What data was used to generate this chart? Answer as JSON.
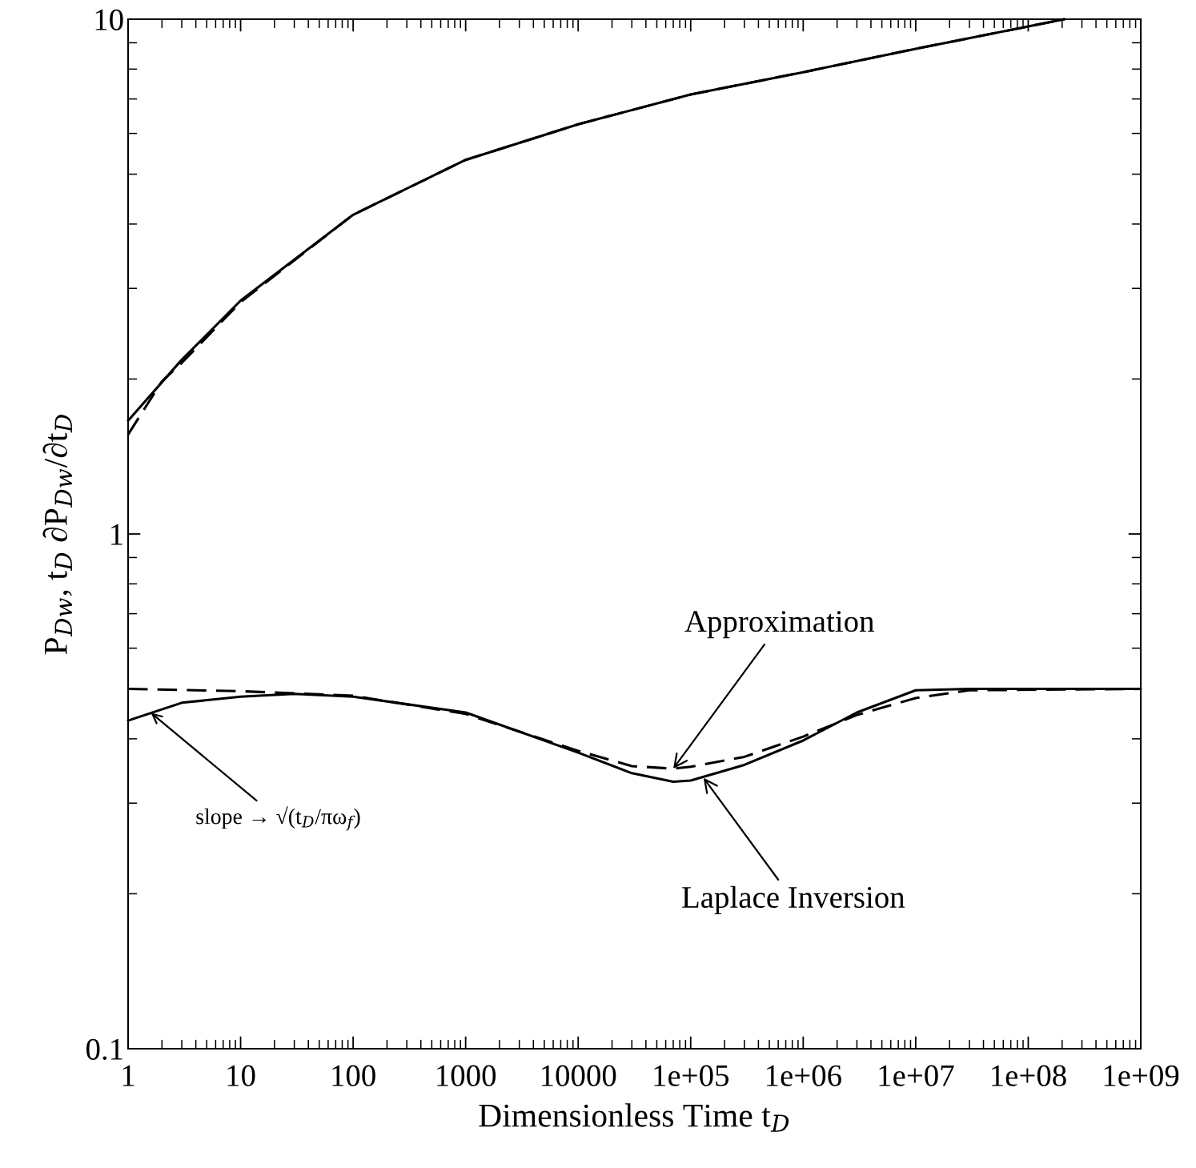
{
  "chart_data": {
    "type": "line",
    "xlabel": "Dimensionless Time t$_{D}$",
    "ylabel": "P$_{Dw}$, t$_{D}$ ∂P$_{Dw}$/∂t$_{D}$",
    "log": "xy",
    "xlim": [
      1,
      1000000000
    ],
    "ylim": [
      0.1,
      10
    ],
    "xticks": [
      1,
      10,
      100,
      1000,
      10000,
      {
        "value": 100000,
        "label": "1e+05"
      },
      {
        "value": 1000000,
        "label": "1e+06"
      },
      {
        "value": 10000000,
        "label": "1e+07"
      },
      {
        "value": 100000000,
        "label": "1e+08"
      },
      {
        "value": 1000000000,
        "label": "1e+09"
      }
    ],
    "yticks": [
      0.1,
      1,
      10
    ],
    "grid": false,
    "legend": false,
    "series": [
      {
        "color": "#000000",
        "line_style": "solid",
        "x": [
          1,
          3,
          10,
          100,
          1000,
          10000,
          100000,
          1000000,
          10000000,
          100000000,
          210000000
        ],
        "values": [
          1.66,
          2.18,
          2.84,
          4.17,
          5.33,
          6.25,
          7.14,
          7.89,
          8.76,
          9.68,
          10
        ]
      },
      {
        "color": "#000000",
        "line_style": "dashed",
        "x": [
          1,
          2,
          3,
          10,
          100,
          1000,
          10000,
          100000,
          1000000,
          10000000,
          100000000,
          210000000
        ],
        "values": [
          1.56,
          1.98,
          2.15,
          2.82,
          4.17,
          5.33,
          6.25,
          7.14,
          7.89,
          8.76,
          9.68,
          10
        ]
      },
      {
        "color": "#000000",
        "line_style": "solid",
        "x": [
          1,
          3,
          10,
          30,
          100,
          1000,
          10000,
          30000,
          70000,
          100000,
          300000,
          1000000,
          3000000,
          10000000,
          30000000,
          1000000000
        ],
        "values": [
          0.434,
          0.47,
          0.483,
          0.489,
          0.483,
          0.45,
          0.376,
          0.343,
          0.33,
          0.332,
          0.356,
          0.397,
          0.45,
          0.497,
          0.5,
          0.5
        ]
      },
      {
        "color": "#000000",
        "line_style": "dashed",
        "x": [
          1,
          10,
          100,
          1000,
          10000,
          30000,
          70000,
          100000,
          300000,
          1000000,
          3000000,
          10000000,
          30000000,
          1000000000
        ],
        "values": [
          0.5,
          0.495,
          0.485,
          0.447,
          0.379,
          0.354,
          0.35,
          0.353,
          0.369,
          0.404,
          0.445,
          0.48,
          0.497,
          0.5
        ]
      }
    ],
    "annotations": [
      {
        "text": "Approximation",
        "x": 70000,
        "y": 0.35
      },
      {
        "text": "Laplace Inversion",
        "x": 130000,
        "y": 0.336
      },
      {
        "text": "slope → √(t$_{D}$/πω$_{f}$)",
        "x": 1.6,
        "y": 0.449
      }
    ]
  }
}
